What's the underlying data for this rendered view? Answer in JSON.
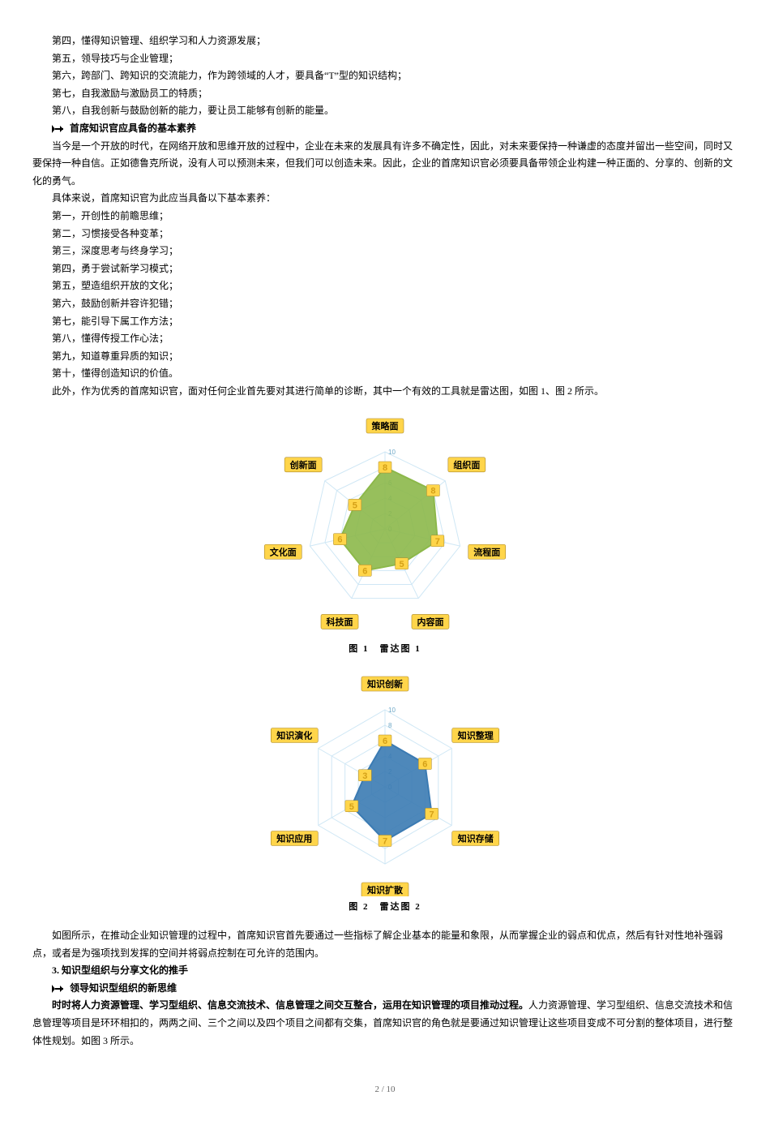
{
  "top_list": [
    "第四，懂得知识管理、组织学习和人力资源发展；",
    "第五，领导技巧与企业管理；",
    "第六，跨部门、跨知识的交流能力，作为跨领域的人才，要具备“T”型的知识结构；",
    "第七，自我激励与激励员工的特质；",
    "第八，自我创新与鼓励创新的能力，要让员工能够有创新的能量。"
  ],
  "bullet1_title": "首席知识官应具备的基本素养",
  "para1": "当今是一个开放的时代，在网络开放和思维开放的过程中，企业在未来的发展具有许多不确定性，因此，对未来要保持一种谦虚的态度并留出一些空间，同时又要保持一种自信。正如德鲁克所说，没有人可以预测未来，但我们可以创造未来。因此，企业的首席知识官必须要具备带领企业构建一种正面的、分享的、创新的文化的勇气。",
  "para2": "具体来说，首席知识官为此应当具备以下基本素养：",
  "qualities": [
    "第一，开创性的前瞻思维；",
    "第二，习惯接受各种变革；",
    "第三，深度思考与终身学习；",
    "第四，勇于尝试新学习模式；",
    "第五，塑造组织开放的文化；",
    "第六，鼓励创新并容许犯错；",
    "第七，能引导下属工作方法；",
    "第八，懂得传授工作心法；",
    "第九，知道尊重异质的知识；",
    "第十，懂得创造知识的价值。"
  ],
  "para3": "此外，作为优秀的首席知识官，面对任何企业首先要对其进行简单的诊断，其中一个有效的工具就是雷达图，如图 1、图 2 所示。",
  "chart1": {
    "type": "radar",
    "caption": "图 1　雷达图 1",
    "axes": [
      "策略面",
      "组织面",
      "流程面",
      "内容面",
      "科技面",
      "文化面",
      "创新面"
    ],
    "values": [
      8,
      8,
      7,
      5,
      6,
      6,
      5
    ],
    "max": 10,
    "tick_step": 2,
    "fill_color": "#8cb84a",
    "line_color": "#8cb84a",
    "grid_color": "#cfe7f5",
    "axis_line_color": "#cfe7f5",
    "tick_label_color": "#6fa8c7",
    "axis_label_bg": "#ffd54a",
    "axis_label_border": "#a8862a",
    "axis_label_text": "#000",
    "value_label_bg": "#ffd54a",
    "value_label_text": "#d4a017",
    "bg": "#ffffff"
  },
  "chart2": {
    "type": "radar",
    "caption": "图 2　雷达图 2",
    "axes": [
      "知识创新",
      "知识整理",
      "知识存储",
      "知识扩散",
      "知识应用",
      "知识演化"
    ],
    "values": [
      6,
      6,
      7,
      7,
      5,
      3
    ],
    "max": 10,
    "tick_step": 2,
    "fill_color": "#3b7bb3",
    "line_color": "#3b7bb3",
    "grid_color": "#cfe7f5",
    "axis_line_color": "#cfe7f5",
    "tick_label_color": "#6fa8c7",
    "axis_label_bg": "#ffd54a",
    "axis_label_border": "#a8862a",
    "axis_label_text": "#000",
    "value_label_bg": "#ffd54a",
    "value_label_text": "#d4a017",
    "bg": "#ffffff"
  },
  "para4": "如图所示，在推动企业知识管理的过程中，首席知识官首先要通过一些指标了解企业基本的能量和象限，从而掌握企业的弱点和优点，然后有针对性地补强弱点，或者是为强项找到发挥的空间并将弱点控制在可允许的范围内。",
  "section3_title": "3. 知识型组织与分享文化的推手",
  "bullet2_title": "领导知识型组织的新思维",
  "para5": "人力资源管理、学习型组织、信息交流技术和信息管理等项目是环环相扣的，两两之间、三个之间以及四个项目之间都有交集，首席知识官的角色就是要通过知识管理让这些项目变成不可分割的整体项目，进行整体性规划。如图 3 所示。",
  "para5_bold_prefix": "时时将人力资源管理、学习型组织、信息交流技术、信息管理之间交互整合，运用在知识管理的项目推动过程。",
  "page_footer": "2 / 10"
}
